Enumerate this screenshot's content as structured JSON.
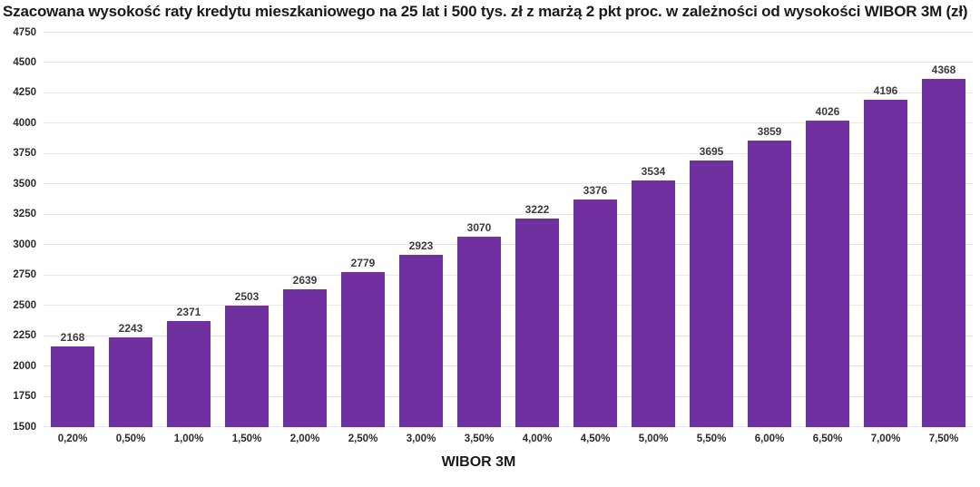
{
  "chart_data": {
    "type": "bar",
    "title": "Szacowana wysokość raty kredytu mieszkaniowego na 25 lat i 500 tys. zł z marżą 2 pkt proc. w zależności od wysokości WIBOR 3M (zł)",
    "xlabel": "WIBOR 3M",
    "ylabel": "",
    "categories": [
      "0,20%",
      "0,50%",
      "1,00%",
      "1,50%",
      "2,00%",
      "2,50%",
      "3,00%",
      "3,50%",
      "4,00%",
      "4,50%",
      "5,00%",
      "5,50%",
      "6,00%",
      "6,50%",
      "7,00%",
      "7,50%"
    ],
    "values": [
      2168,
      2243,
      2371,
      2503,
      2639,
      2779,
      2923,
      3070,
      3222,
      3376,
      3534,
      3695,
      3859,
      4026,
      4196,
      4368
    ],
    "ylim": [
      1500,
      4750
    ],
    "ytick_step": 250,
    "grid": true,
    "legend": false,
    "bar_color": "#7030A0",
    "grid_color": "#e9e9e9",
    "text_color": "#1a1a1a",
    "value_label_color": "#3c3c3c"
  }
}
